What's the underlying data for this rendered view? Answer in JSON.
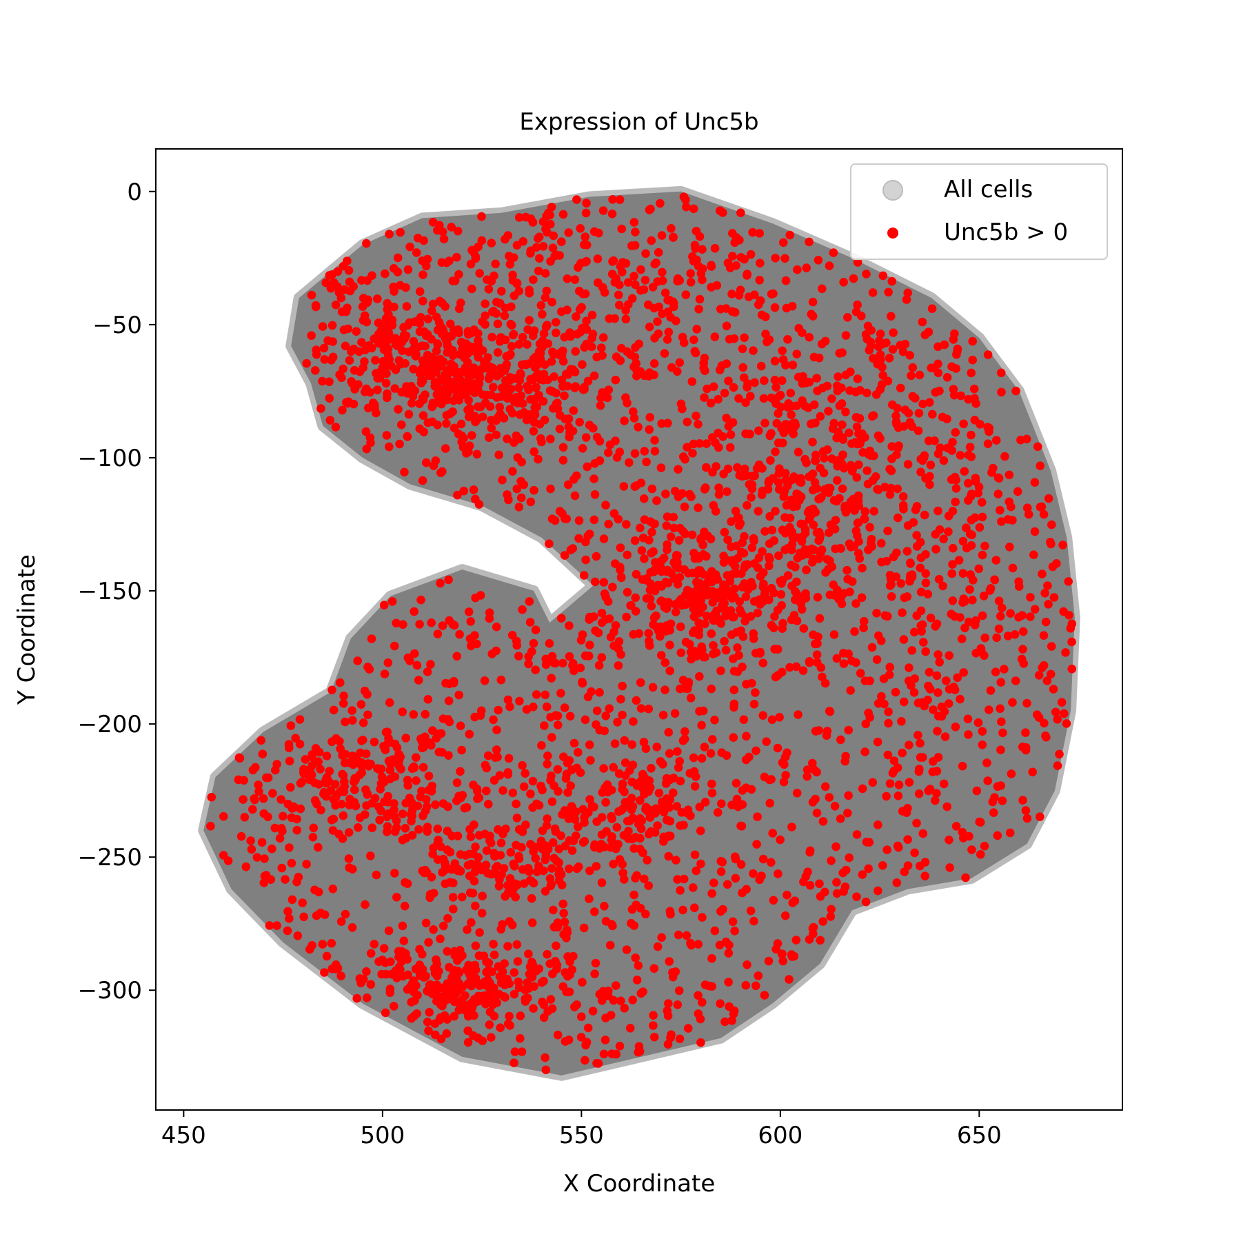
{
  "chart_data": {
    "type": "scatter",
    "title": "Expression of Unc5b",
    "xlabel": "X Coordinate",
    "ylabel": "Y Coordinate",
    "xlim": [
      443,
      686
    ],
    "ylim": [
      -345,
      16
    ],
    "xticks": [
      {
        "value": 450,
        "label": "450"
      },
      {
        "value": 500,
        "label": "500"
      },
      {
        "value": 550,
        "label": "550"
      },
      {
        "value": 600,
        "label": "600"
      },
      {
        "value": 650,
        "label": "650"
      }
    ],
    "yticks": [
      {
        "value": 0,
        "label": "0"
      },
      {
        "value": -50,
        "label": "−50"
      },
      {
        "value": -100,
        "label": "−100"
      },
      {
        "value": -150,
        "label": "−150"
      },
      {
        "value": -200,
        "label": "−200"
      },
      {
        "value": -250,
        "label": "−250"
      },
      {
        "value": -300,
        "label": "−300"
      }
    ],
    "grid": false,
    "legend_position": "top-right",
    "series": [
      {
        "name": "All cells",
        "color": "#808080",
        "marker": "filled-circle",
        "outline_points": [
          [
            530,
            -8
          ],
          [
            552,
            -2
          ],
          [
            575,
            0
          ],
          [
            598,
            -12
          ],
          [
            618,
            -25
          ],
          [
            638,
            -40
          ],
          [
            650,
            -55
          ],
          [
            660,
            -75
          ],
          [
            668,
            -105
          ],
          [
            672,
            -130
          ],
          [
            674,
            -160
          ],
          [
            673,
            -195
          ],
          [
            669,
            -225
          ],
          [
            662,
            -245
          ],
          [
            648,
            -258
          ],
          [
            632,
            -262
          ],
          [
            618,
            -270
          ],
          [
            610,
            -290
          ],
          [
            598,
            -305
          ],
          [
            585,
            -318
          ],
          [
            565,
            -325
          ],
          [
            545,
            -332
          ],
          [
            520,
            -325
          ],
          [
            495,
            -305
          ],
          [
            475,
            -282
          ],
          [
            462,
            -262
          ],
          [
            455,
            -240
          ],
          [
            458,
            -220
          ],
          [
            470,
            -203
          ],
          [
            487,
            -188
          ],
          [
            492,
            -168
          ],
          [
            502,
            -152
          ],
          [
            520,
            -142
          ],
          [
            538,
            -150
          ],
          [
            542,
            -162
          ],
          [
            553,
            -148
          ],
          [
            540,
            -130
          ],
          [
            525,
            -118
          ],
          [
            507,
            -110
          ],
          [
            495,
            -100
          ],
          [
            485,
            -88
          ],
          [
            482,
            -72
          ],
          [
            477,
            -58
          ],
          [
            479,
            -40
          ],
          [
            495,
            -20
          ],
          [
            510,
            -10
          ]
        ]
      },
      {
        "name": "Unc5b > 0",
        "color": "#ff0000",
        "marker": "filled-circle",
        "clusters": [
          {
            "center": [
              525,
              -70
            ],
            "spread": [
              14,
              12
            ],
            "weight": 1.6
          },
          {
            "center": [
              507,
              -60
            ],
            "spread": [
              16,
              16
            ],
            "weight": 1.0
          },
          {
            "center": [
              580,
              -150
            ],
            "spread": [
              12,
              12
            ],
            "weight": 1.6
          },
          {
            "center": [
              608,
              -118
            ],
            "spread": [
              12,
              18
            ],
            "weight": 1.0
          },
          {
            "center": [
              522,
              -298
            ],
            "spread": [
              12,
              8
            ],
            "weight": 1.3
          },
          {
            "center": [
              495,
              -222
            ],
            "spread": [
              14,
              10
            ],
            "weight": 1.1
          },
          {
            "center": [
              562,
              -232
            ],
            "spread": [
              10,
              10
            ],
            "weight": 0.8
          },
          {
            "center": [
              530,
              -250
            ],
            "spread": [
              10,
              10
            ],
            "weight": 0.8
          },
          {
            "center": [
              615,
              -80
            ],
            "spread": [
              20,
              22
            ],
            "weight": 0.8
          },
          {
            "center": [
              640,
              -160
            ],
            "spread": [
              18,
              35
            ],
            "weight": 0.9
          },
          {
            "center": [
              560,
              -40
            ],
            "spread": [
              25,
              20
            ],
            "weight": 1.0
          }
        ],
        "approx_point_count": 3800
      }
    ]
  }
}
